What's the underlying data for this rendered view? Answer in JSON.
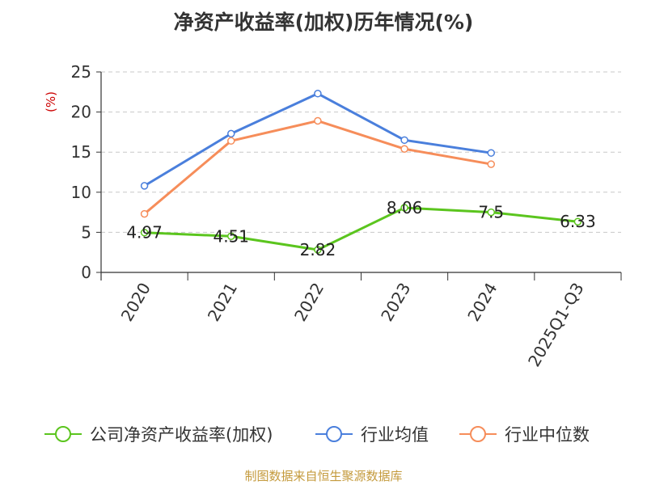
{
  "title": "净资产收益率(加权)历年情况(%)",
  "source": "制图数据来自恒生聚源数据库",
  "chart_data": {
    "type": "line",
    "title": "净资产收益率(加权)历年情况(%)",
    "ylabel": "(%)",
    "categories": [
      "2020",
      "2021",
      "2022",
      "2023",
      "2024",
      "2025Q1-Q3"
    ],
    "ylim": [
      0,
      25
    ],
    "yticks": [
      0,
      5,
      10,
      15,
      20,
      25
    ],
    "grid": true,
    "legend_position": "bottom",
    "series": [
      {
        "name": "公司净资产收益率(加权)",
        "color": "#5bc51e",
        "show_labels": true,
        "values": [
          4.97,
          4.51,
          2.82,
          8.06,
          7.5,
          6.33
        ],
        "labels": [
          "4.97",
          "4.51",
          "2.82",
          "8.06",
          "7.5",
          "6.33"
        ]
      },
      {
        "name": "行业均值",
        "color": "#4a7fdc",
        "show_labels": false,
        "values": [
          10.8,
          17.3,
          22.3,
          16.5,
          14.9,
          null
        ]
      },
      {
        "name": "行业中位数",
        "color": "#f68d5a",
        "show_labels": false,
        "values": [
          7.3,
          16.4,
          18.9,
          15.4,
          13.5,
          null
        ]
      }
    ]
  },
  "colors": {
    "title": "#333333",
    "ylabel": "#cc0000",
    "source": "#c49a3c",
    "grid": "#c8c8c8",
    "axis": "#333333"
  }
}
